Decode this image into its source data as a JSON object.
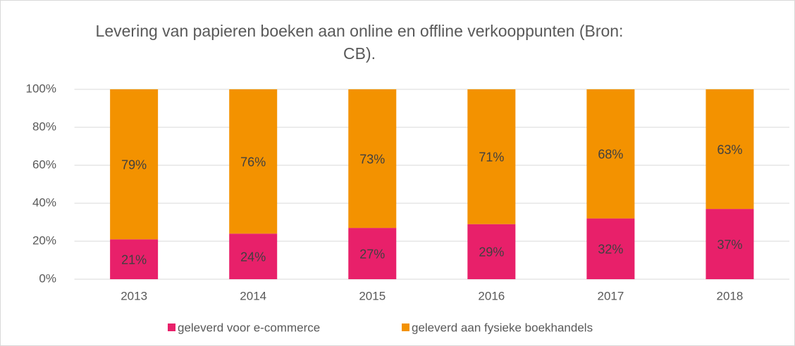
{
  "chart_data": {
    "type": "stacked_bar",
    "title": "Levering van papieren boeken aan online en offline verkooppunten (Bron: CB).",
    "categories": [
      "2013",
      "2014",
      "2015",
      "2016",
      "2017",
      "2018"
    ],
    "series": [
      {
        "name": "geleverd voor e-commerce",
        "color": "#e8206a",
        "values": [
          21,
          24,
          27,
          29,
          32,
          37
        ],
        "value_labels": [
          "21%",
          "24%",
          "27%",
          "29%",
          "32%",
          "37%"
        ]
      },
      {
        "name": "geleverd aan fysieke boekhandels",
        "color": "#f39200",
        "values": [
          79,
          76,
          73,
          71,
          68,
          63
        ],
        "value_labels": [
          "79%",
          "76%",
          "73%",
          "71%",
          "68%",
          "63%"
        ]
      }
    ],
    "ylim": [
      0,
      100
    ],
    "yticks": [
      {
        "value": 0,
        "label": "0%"
      },
      {
        "value": 20,
        "label": "20%"
      },
      {
        "value": 40,
        "label": "40%"
      },
      {
        "value": 60,
        "label": "60%"
      },
      {
        "value": 80,
        "label": "80%"
      },
      {
        "value": 100,
        "label": "100%"
      }
    ],
    "grid": true,
    "legend": "bottom"
  }
}
